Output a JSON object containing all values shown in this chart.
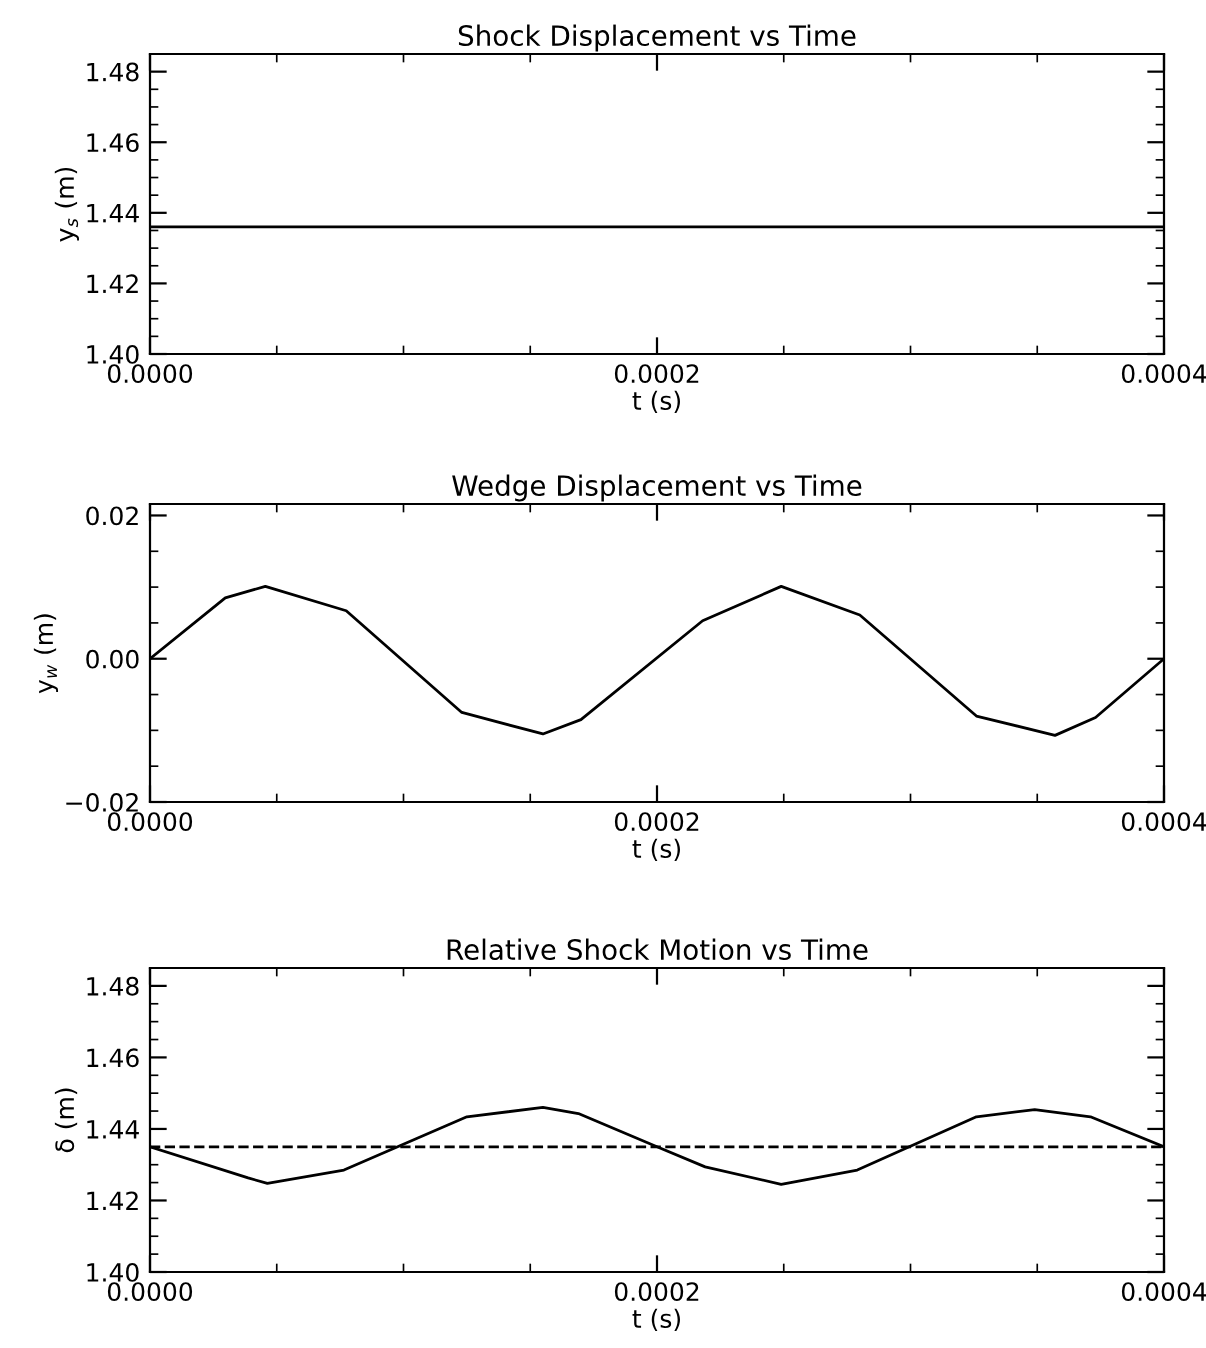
{
  "chart_data": [
    {
      "type": "line",
      "title": "Shock Displacement vs Time",
      "xlabel": "t (s)",
      "ylabel": "y$_{s}$ (m)",
      "xlim": [
        0,
        0.0004
      ],
      "xticks": [
        {
          "value": 0,
          "label": "0.0000"
        },
        {
          "value": 0.0002,
          "label": "0.0002"
        },
        {
          "value": 0.0004,
          "label": "0.0004"
        }
      ],
      "ylim": [
        1.4,
        1.485
      ],
      "yticks": [
        {
          "value": 1.4,
          "label": "1.40"
        },
        {
          "value": 1.42,
          "label": "1.42"
        },
        {
          "value": 1.44,
          "label": "1.44"
        },
        {
          "value": 1.46,
          "label": "1.46"
        },
        {
          "value": 1.48,
          "label": "1.48"
        }
      ],
      "series": [
        {
          "color": "#000000",
          "x": [
            0,
            0.0004
          ],
          "values": [
            1.436,
            1.436
          ]
        }
      ]
    },
    {
      "type": "line",
      "title": "Wedge Displacement vs Time",
      "xlabel": "t (s)",
      "ylabel": "y$_{w}$ (m)",
      "xlim": [
        0,
        0.0004
      ],
      "xticks": [
        {
          "value": 0,
          "label": "0.0000"
        },
        {
          "value": 0.0002,
          "label": "0.0002"
        },
        {
          "value": 0.0004,
          "label": "0.0004"
        }
      ],
      "ylim": [
        -0.02,
        0.0216
      ],
      "yticks": [
        {
          "value": -0.02,
          "label": "−0.02"
        },
        {
          "value": 0,
          "label": "0.00"
        },
        {
          "value": 0.02,
          "label": "0.02"
        }
      ],
      "series": [
        {
          "color": "#000000",
          "x": [
            0,
            2.97e-05,
            4.55e-05,
            7.74e-05,
            0.000123,
            0.000155,
            0.00017,
            0.000218,
            0.000249,
            0.00028,
            0.000326,
            0.000357,
            0.000373,
            0.0004
          ],
          "values": [
            0,
            0.0085,
            0.0101,
            0.0067,
            -0.0075,
            -0.0105,
            -0.0085,
            0.0053,
            0.0101,
            0.0061,
            -0.008,
            -0.0107,
            -0.0082,
            0
          ]
        }
      ]
    },
    {
      "type": "line",
      "title": "Relative Shock Motion vs Time",
      "xlabel": "t (s)",
      "ylabel": "δ (m)",
      "xlim": [
        0,
        0.0004
      ],
      "xticks": [
        {
          "value": 0,
          "label": "0.0000"
        },
        {
          "value": 0.0002,
          "label": "0.0002"
        },
        {
          "value": 0.0004,
          "label": "0.0004"
        }
      ],
      "ylim": [
        1.4,
        1.485
      ],
      "yticks": [
        {
          "value": 1.4,
          "label": "1.40"
        },
        {
          "value": 1.42,
          "label": "1.42"
        },
        {
          "value": 1.44,
          "label": "1.44"
        },
        {
          "value": 1.46,
          "label": "1.46"
        },
        {
          "value": 1.48,
          "label": "1.48"
        }
      ],
      "ref_lines": [
        {
          "axis": "y",
          "value": 1.435,
          "color": "#000000",
          "line_style": "dashed"
        }
      ],
      "series": [
        {
          "color": "#000000",
          "x": [
            0,
            3.87e-05,
            4.63e-05,
            7.65e-05,
            0.000125,
            0.000155,
            0.000169,
            0.0002,
            0.000219,
            0.000249,
            0.000279,
            0.000326,
            0.000349,
            0.000371,
            0.0004
          ],
          "values": [
            1.435,
            1.4263,
            1.4248,
            1.4285,
            1.4434,
            1.446,
            1.4443,
            1.435,
            1.4294,
            1.4245,
            1.4285,
            1.4434,
            1.4454,
            1.4434,
            1.435
          ]
        }
      ]
    }
  ]
}
